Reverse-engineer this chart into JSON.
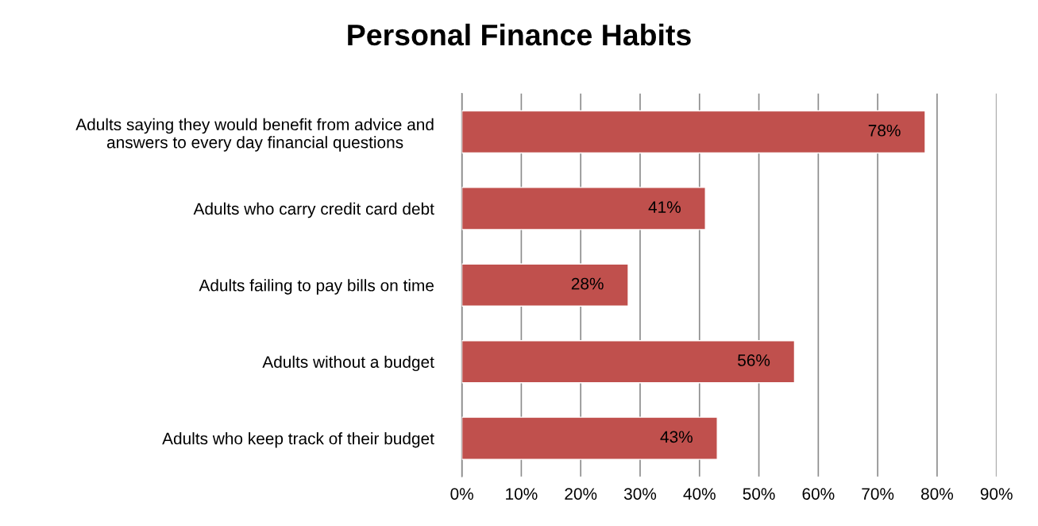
{
  "chart_data": {
    "type": "bar",
    "orientation": "horizontal",
    "title": "Personal Finance Habits",
    "categories": [
      "Adults saying they would benefit from advice and\nanswers to every day financial questions",
      "Adults who carry credit card debt",
      "Adults failing to pay bills on time",
      "Adults without a budget",
      "Adults who keep track of their budget"
    ],
    "values": [
      78,
      41,
      28,
      56,
      43
    ],
    "value_labels": [
      "78%",
      "41%",
      "28%",
      "56%",
      "43%"
    ],
    "color": "#c0504d",
    "xlim": [
      0,
      90
    ],
    "xticks": [
      {
        "value": 0,
        "label": "0%"
      },
      {
        "value": 10,
        "label": "10%"
      },
      {
        "value": 20,
        "label": "20%"
      },
      {
        "value": 30,
        "label": "30%"
      },
      {
        "value": 40,
        "label": "40%"
      },
      {
        "value": 50,
        "label": "50%"
      },
      {
        "value": 60,
        "label": "60%"
      },
      {
        "value": 70,
        "label": "70%"
      },
      {
        "value": 80,
        "label": "80%"
      },
      {
        "value": 90,
        "label": "90%"
      }
    ],
    "grid": "x",
    "legend": false
  }
}
